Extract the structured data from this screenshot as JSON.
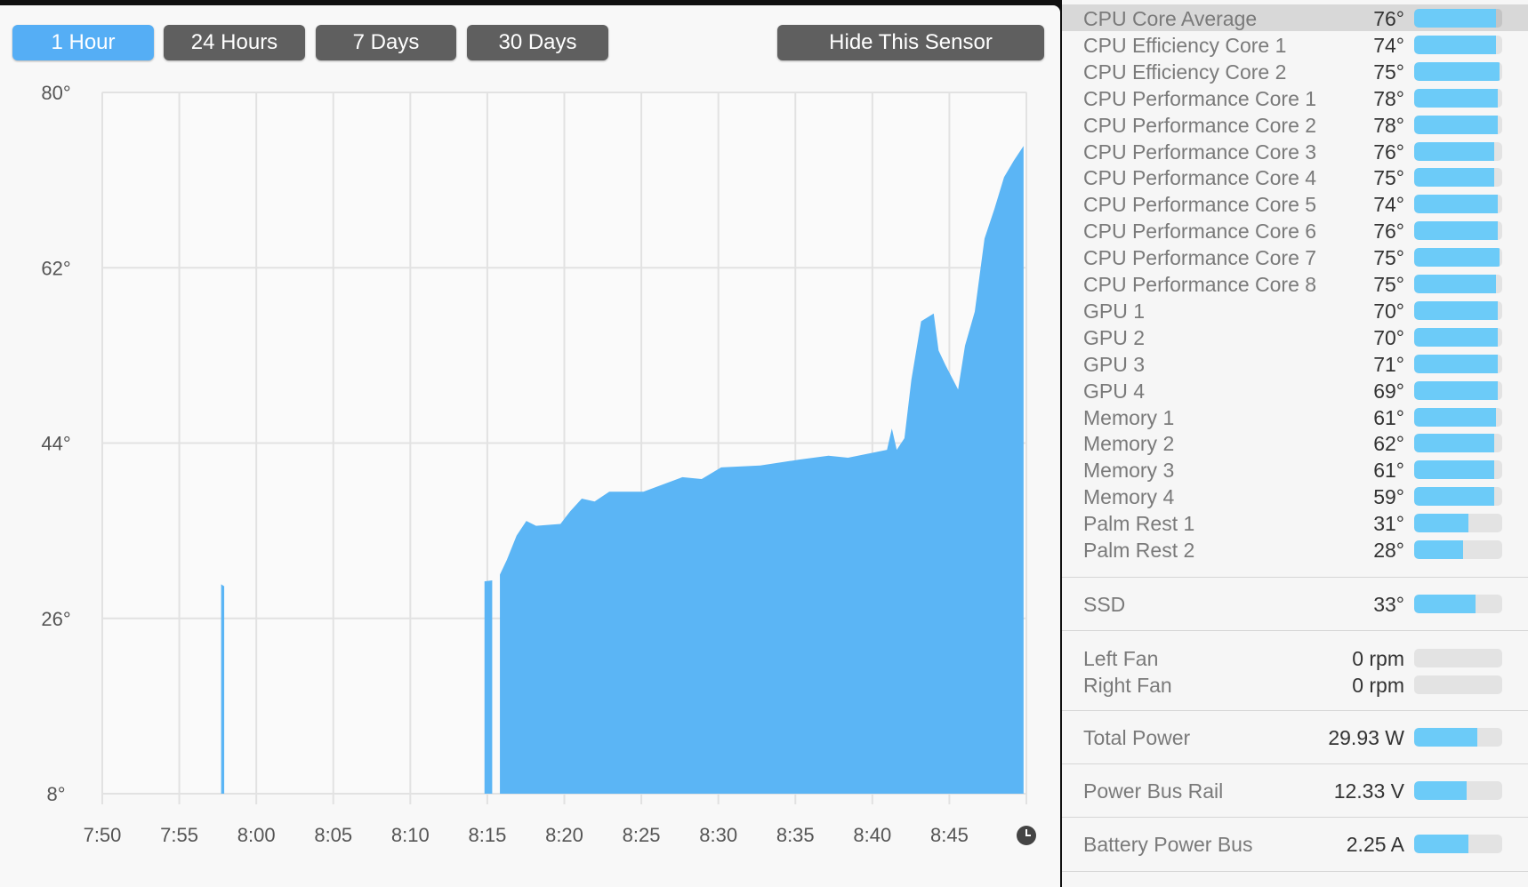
{
  "toolbar": {
    "buttons": [
      {
        "label": "1 Hour",
        "active": true
      },
      {
        "label": "24 Hours"
      },
      {
        "label": "7 Days"
      },
      {
        "label": "30 Days"
      }
    ],
    "hide_label": "Hide This Sensor"
  },
  "colors": {
    "accent": "#55aef5",
    "area": "#5bb5f5",
    "bar": "#6ccbf8",
    "button": "#5f5f5f"
  },
  "chart_data": {
    "type": "area",
    "ylim": [
      8,
      80
    ],
    "y_ticks": [
      "80°",
      "62°",
      "44°",
      "26°",
      "8°"
    ],
    "y_tick_values": [
      80,
      62,
      44,
      26,
      8
    ],
    "x_ticks": [
      "7:50",
      "7:55",
      "8:00",
      "8:05",
      "8:10",
      "8:15",
      "8:20",
      "8:25",
      "8:30",
      "8:35",
      "8:40",
      "8:45"
    ],
    "x_range": [
      "7:50:00",
      "8:50:00"
    ],
    "grid": true,
    "end_icon": "clock-icon",
    "segments": [
      [
        [
          "7:57:43",
          29.5
        ],
        [
          "7:57:55",
          29.3
        ]
      ],
      [
        [
          "8:14:49",
          29.8
        ],
        [
          "8:15:19",
          29.9
        ]
      ],
      [
        [
          "8:15:49",
          30.5
        ],
        [
          "8:16:16",
          32
        ],
        [
          "8:16:54",
          34.5
        ],
        [
          "8:17:32",
          36
        ],
        [
          "8:18:10",
          35.5
        ],
        [
          "8:19:45",
          35.7
        ],
        [
          "8:20:23",
          37
        ],
        [
          "8:21:08",
          38.3
        ],
        [
          "8:21:58",
          38
        ],
        [
          "8:22:55",
          39
        ],
        [
          "8:25:08",
          39
        ],
        [
          "8:27:40",
          40.5
        ],
        [
          "8:28:55",
          40.3
        ],
        [
          "8:30:11",
          41.5
        ],
        [
          "8:32:43",
          41.7
        ],
        [
          "8:35:15",
          42.3
        ],
        [
          "8:37:09",
          42.7
        ],
        [
          "8:38:25",
          42.5
        ],
        [
          "8:40:57",
          43.3
        ],
        [
          "8:41:16",
          45.5
        ],
        [
          "8:41:35",
          43.3
        ],
        [
          "8:42:05",
          44.5
        ],
        [
          "8:42:32",
          50.5
        ],
        [
          "8:43:10",
          56.5
        ],
        [
          "8:43:59",
          57.3
        ],
        [
          "8:44:18",
          53.5
        ],
        [
          "8:44:45",
          52
        ],
        [
          "8:45:34",
          49.5
        ],
        [
          "8:46:01",
          54
        ],
        [
          "8:46:39",
          57.5
        ],
        [
          "8:47:17",
          65
        ],
        [
          "8:47:55",
          68
        ],
        [
          "8:48:33",
          71.3
        ],
        [
          "8:49:11",
          73
        ],
        [
          "8:49:49",
          74.5
        ]
      ]
    ]
  },
  "sensors": {
    "temps": [
      {
        "name": "CPU Core Average",
        "value": "76°",
        "level": 0.93,
        "selected": true
      },
      {
        "name": "CPU Efficiency Core 1",
        "value": "74°",
        "level": 0.93
      },
      {
        "name": "CPU Efficiency Core 2",
        "value": "75°",
        "level": 0.97
      },
      {
        "name": "CPU Performance Core 1",
        "value": "78°",
        "level": 0.95
      },
      {
        "name": "CPU Performance Core 2",
        "value": "78°",
        "level": 0.95
      },
      {
        "name": "CPU Performance Core 3",
        "value": "76°",
        "level": 0.91
      },
      {
        "name": "CPU Performance Core 4",
        "value": "75°",
        "level": 0.91
      },
      {
        "name": "CPU Performance Core 5",
        "value": "74°",
        "level": 0.95
      },
      {
        "name": "CPU Performance Core 6",
        "value": "76°",
        "level": 0.95
      },
      {
        "name": "CPU Performance Core 7",
        "value": "75°",
        "level": 0.97
      },
      {
        "name": "CPU Performance Core 8",
        "value": "75°",
        "level": 0.93
      },
      {
        "name": "GPU 1",
        "value": "70°",
        "level": 0.95
      },
      {
        "name": "GPU 2",
        "value": "70°",
        "level": 0.95
      },
      {
        "name": "GPU 3",
        "value": "71°",
        "level": 0.95
      },
      {
        "name": "GPU 4",
        "value": "69°",
        "level": 0.95
      },
      {
        "name": "Memory 1",
        "value": "61°",
        "level": 0.93
      },
      {
        "name": "Memory 2",
        "value": "62°",
        "level": 0.91
      },
      {
        "name": "Memory 3",
        "value": "61°",
        "level": 0.91
      },
      {
        "name": "Memory 4",
        "value": "59°",
        "level": 0.91
      },
      {
        "name": "Palm Rest 1",
        "value": "31°",
        "level": 0.62
      },
      {
        "name": "Palm Rest 2",
        "value": "28°",
        "level": 0.56
      }
    ],
    "ssd": {
      "name": "SSD",
      "value": "33°",
      "level": 0.7
    },
    "fans": [
      {
        "name": "Left Fan",
        "value": "0 rpm",
        "level": 0
      },
      {
        "name": "Right Fan",
        "value": "0 rpm",
        "level": 0
      }
    ],
    "power": {
      "name": "Total Power",
      "value": "29.93 W",
      "level": 0.72
    },
    "voltage": {
      "name": "Power Bus Rail",
      "value": "12.33 V",
      "level": 0.6
    },
    "current": {
      "name": "Battery Power Bus",
      "value": "2.25 A",
      "level": 0.62
    }
  }
}
